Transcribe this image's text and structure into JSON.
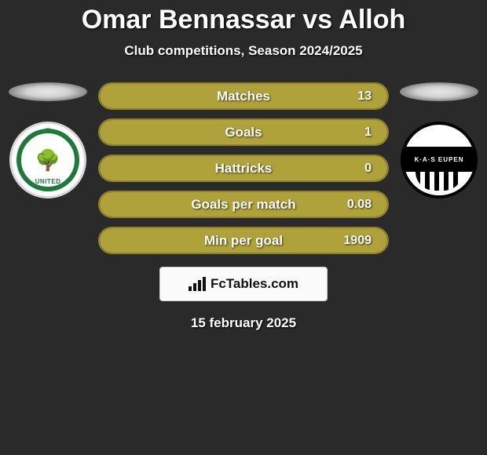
{
  "title": "Omar Bennassar vs Alloh",
  "subtitle": "Club competitions, Season 2024/2025",
  "date": "15 february 2025",
  "brand": "FcTables.com",
  "colors": {
    "bar_fill": "#b0a23a",
    "bar_border": "#8e822b",
    "background": "#2a2a2a"
  },
  "left_club": {
    "name": "lommel-united",
    "primary_color": "#1e7a3a",
    "label_top": "LOMMEL",
    "label_bottom": "UNITED"
  },
  "right_club": {
    "name": "kas-eupen",
    "text": "K·A·S  EUPEN"
  },
  "stats": [
    {
      "label": "Matches",
      "value": "13",
      "fill_pct": 100
    },
    {
      "label": "Goals",
      "value": "1",
      "fill_pct": 100
    },
    {
      "label": "Hattricks",
      "value": "0",
      "fill_pct": 100
    },
    {
      "label": "Goals per match",
      "value": "0.08",
      "fill_pct": 100
    },
    {
      "label": "Min per goal",
      "value": "1909",
      "fill_pct": 100
    }
  ]
}
